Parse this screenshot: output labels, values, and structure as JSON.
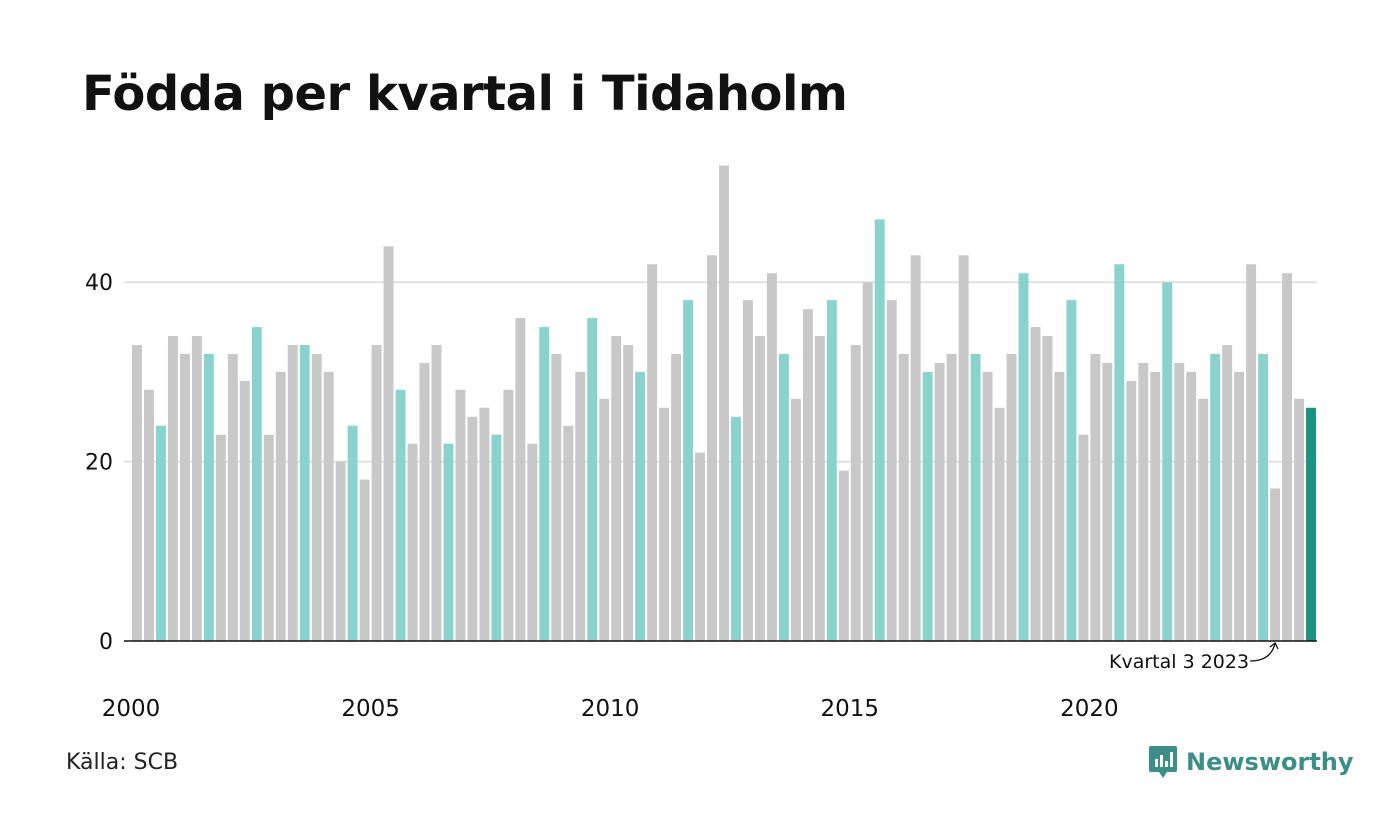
{
  "title": "Födda per kvartal i Tidaholm",
  "source": "Källa: SCB",
  "logo_text": "Newsworthy",
  "logo_icon": "newsworthy-logo-icon",
  "colors": {
    "bar_default": "#c8c8c8",
    "bar_quarter_highlight": "#8ad3cc",
    "bar_latest": "#1a9384",
    "gridline": "#e1e1e1",
    "axis": "#111111",
    "brand": "#3d8e86"
  },
  "chart_data": {
    "type": "bar",
    "title": "Födda per kvartal i Tidaholm",
    "xlabel": "",
    "ylabel": "",
    "ylim": [
      0,
      55
    ],
    "yticks": [
      0,
      20,
      40
    ],
    "xtick_labels": [
      "2000",
      "2005",
      "2010",
      "2015",
      "2020"
    ],
    "grid": true,
    "highlight_quarter": 3,
    "start_year": 2000,
    "annotation": "Kvartal 3 2023",
    "values": [
      33,
      28,
      24,
      34,
      32,
      34,
      32,
      23,
      32,
      29,
      35,
      23,
      30,
      33,
      33,
      32,
      30,
      20,
      24,
      18,
      33,
      44,
      28,
      22,
      31,
      33,
      22,
      28,
      25,
      26,
      23,
      28,
      36,
      22,
      35,
      32,
      24,
      30,
      36,
      27,
      34,
      33,
      30,
      42,
      26,
      32,
      38,
      21,
      43,
      53,
      25,
      38,
      34,
      41,
      32,
      27,
      37,
      34,
      38,
      19,
      33,
      40,
      47,
      38,
      32,
      43,
      30,
      31,
      32,
      43,
      32,
      30,
      26,
      32,
      41,
      35,
      34,
      30,
      38,
      23,
      32,
      31,
      42,
      29,
      31,
      30,
      40,
      31,
      30,
      27,
      32,
      33,
      30,
      42,
      32,
      17,
      41,
      27,
      26
    ]
  }
}
